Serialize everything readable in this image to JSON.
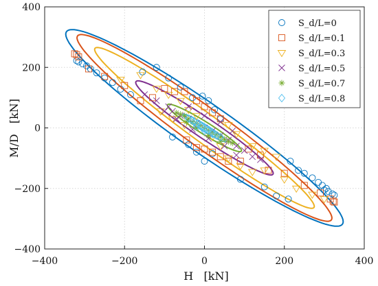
{
  "chart_data": {
    "type": "scatter",
    "title": "",
    "xlabel": "H   [kN]",
    "ylabel": "M/D   [kN]",
    "xlim": [
      -400,
      400
    ],
    "ylim": [
      -400,
      400
    ],
    "xticks": [
      "−400",
      "−200",
      "0",
      "200",
      "400"
    ],
    "yticks": [
      "400",
      "200",
      "0",
      "−200",
      "−400"
    ],
    "grid": true,
    "legend_position": "top-right",
    "series": [
      {
        "name": "S_d/L=0",
        "marker": "circle",
        "color": "#0072BD",
        "ellipse": {
          "a": 470,
          "b": 72,
          "angle_deg": -43
        },
        "points": [
          [
            -320,
            222
          ],
          [
            -315,
            218
          ],
          [
            -305,
            212
          ],
          [
            -295,
            205
          ],
          [
            -285,
            195
          ],
          [
            -270,
            182
          ],
          [
            -250,
            165
          ],
          [
            -230,
            150
          ],
          [
            -210,
            128
          ],
          [
            -185,
            110
          ],
          [
            -155,
            185
          ],
          [
            -120,
            200
          ],
          [
            -90,
            165
          ],
          [
            -60,
            135
          ],
          [
            -30,
            100
          ],
          [
            -5,
            105
          ],
          [
            10,
            90
          ],
          [
            25,
            60
          ],
          [
            40,
            30
          ],
          [
            20,
            -85
          ],
          [
            0,
            -110
          ],
          [
            -20,
            -80
          ],
          [
            -40,
            -55
          ],
          [
            -80,
            -30
          ],
          [
            90,
            -170
          ],
          [
            150,
            -195
          ],
          [
            180,
            -225
          ],
          [
            210,
            -235
          ],
          [
            215,
            -110
          ],
          [
            235,
            -140
          ],
          [
            250,
            -150
          ],
          [
            270,
            -165
          ],
          [
            285,
            -180
          ],
          [
            295,
            -190
          ],
          [
            305,
            -200
          ],
          [
            310,
            -210
          ],
          [
            320,
            -218
          ],
          [
            325,
            -222
          ],
          [
            300,
            -205
          ]
        ]
      },
      {
        "name": "S_d/L=0.1",
        "marker": "square",
        "color": "#D95319",
        "ellipse": {
          "a": 440,
          "b": 58,
          "angle_deg": -44
        },
        "points": [
          [
            -325,
            245
          ],
          [
            -320,
            242
          ],
          [
            -315,
            235
          ],
          [
            -290,
            195
          ],
          [
            -250,
            170
          ],
          [
            -200,
            140
          ],
          [
            -160,
            90
          ],
          [
            -130,
            100
          ],
          [
            -100,
            130
          ],
          [
            -75,
            120
          ],
          [
            -50,
            120
          ],
          [
            -20,
            90
          ],
          [
            0,
            70
          ],
          [
            20,
            50
          ],
          [
            40,
            30
          ],
          [
            -45,
            -40
          ],
          [
            -20,
            -65
          ],
          [
            0,
            -70
          ],
          [
            20,
            -80
          ],
          [
            40,
            -95
          ],
          [
            60,
            -110
          ],
          [
            90,
            -110
          ],
          [
            110,
            -70
          ],
          [
            140,
            -90
          ],
          [
            160,
            -140
          ],
          [
            200,
            -150
          ],
          [
            250,
            -190
          ],
          [
            290,
            -215
          ],
          [
            315,
            -235
          ],
          [
            325,
            -245
          ],
          [
            322,
            -242
          ]
        ]
      },
      {
        "name": "S_d/L=0.3",
        "marker": "triangle-down",
        "color": "#EDB120",
        "ellipse": {
          "a": 380,
          "b": 42,
          "angle_deg": -44
        },
        "points": [
          [
            -210,
            160
          ],
          [
            -160,
            175
          ],
          [
            -120,
            130
          ],
          [
            -90,
            110
          ],
          [
            -60,
            90
          ],
          [
            -40,
            60
          ],
          [
            -20,
            40
          ],
          [
            -110,
            55
          ],
          [
            -80,
            30
          ],
          [
            -50,
            10
          ],
          [
            20,
            -30
          ],
          [
            40,
            -60
          ],
          [
            60,
            -100
          ],
          [
            90,
            -125
          ],
          [
            120,
            -145
          ],
          [
            150,
            -140
          ],
          [
            200,
            -170
          ],
          [
            230,
            -200
          ],
          [
            270,
            -220
          ],
          [
            300,
            -235
          ],
          [
            180,
            -95
          ],
          [
            150,
            -75
          ],
          [
            120,
            -60
          ],
          [
            60,
            10
          ],
          [
            80,
            -20
          ]
        ]
      },
      {
        "name": "S_d/L=0.5",
        "marker": "x",
        "color": "#7E2F8E",
        "ellipse": {
          "a": 230,
          "b": 30,
          "angle_deg": -42
        },
        "points": [
          [
            -150,
            110
          ],
          [
            -120,
            90
          ],
          [
            -90,
            70
          ],
          [
            -80,
            55
          ],
          [
            -60,
            40
          ],
          [
            -40,
            30
          ],
          [
            -20,
            15
          ],
          [
            0,
            0
          ],
          [
            20,
            -10
          ],
          [
            40,
            -25
          ],
          [
            60,
            -40
          ],
          [
            80,
            -60
          ],
          [
            100,
            -75
          ],
          [
            120,
            -95
          ],
          [
            140,
            -105
          ],
          [
            -100,
            55
          ],
          [
            -70,
            30
          ],
          [
            -30,
            -5
          ],
          [
            10,
            -35
          ],
          [
            50,
            -60
          ],
          [
            80,
            -90
          ],
          [
            -40,
            70
          ],
          [
            0,
            40
          ],
          [
            40,
            20
          ],
          [
            70,
            -10
          ]
        ]
      },
      {
        "name": "S_d/L=0.7",
        "marker": "asterisk",
        "color": "#77AC30",
        "ellipse": {
          "a": 120,
          "b": 18,
          "angle_deg": -40
        },
        "points": [
          [
            -70,
            50
          ],
          [
            -60,
            45
          ],
          [
            -50,
            40
          ],
          [
            -40,
            30
          ],
          [
            -30,
            20
          ],
          [
            -20,
            15
          ],
          [
            -10,
            8
          ],
          [
            0,
            0
          ],
          [
            10,
            -8
          ],
          [
            20,
            -15
          ],
          [
            30,
            -22
          ],
          [
            40,
            -30
          ],
          [
            50,
            -38
          ],
          [
            60,
            -45
          ],
          [
            70,
            -50
          ],
          [
            -45,
            20
          ],
          [
            -20,
            0
          ],
          [
            10,
            -25
          ],
          [
            40,
            -45
          ]
        ]
      },
      {
        "name": "S_d/L=0.8",
        "marker": "diamond",
        "color": "#4DBEEE",
        "ellipse": {
          "a": 70,
          "b": 10,
          "angle_deg": -40
        },
        "points": [
          [
            -40,
            30
          ],
          [
            -32,
            25
          ],
          [
            -25,
            20
          ],
          [
            -18,
            14
          ],
          [
            -10,
            8
          ],
          [
            -5,
            4
          ],
          [
            0,
            0
          ],
          [
            5,
            -4
          ],
          [
            10,
            -8
          ],
          [
            18,
            -14
          ],
          [
            25,
            -20
          ],
          [
            32,
            -25
          ],
          [
            40,
            -30
          ],
          [
            -20,
            5
          ],
          [
            0,
            -10
          ],
          [
            20,
            -20
          ]
        ]
      }
    ]
  }
}
